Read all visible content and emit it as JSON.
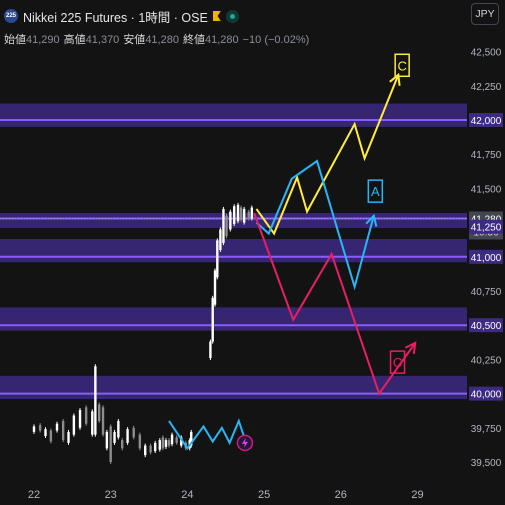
{
  "header": {
    "logo_text": "225",
    "symbol_title": "Nikkei 225 Futures · 1時間 · OSE",
    "flag_icon": "bookmark-flag-icon",
    "status_icon": "market-open-dot-icon"
  },
  "ohlc": {
    "open_label": "始値",
    "open_value": "41,290",
    "high_label": "高値",
    "high_value": "41,370",
    "low_label": "安値",
    "low_value": "41,280",
    "close_label": "終値",
    "close_value": "41,280",
    "change": "−10 (−0.02%)"
  },
  "currency_button": "JPY",
  "colors": {
    "background": "#131313",
    "zone_fill": "#3d2a82",
    "zone_line": "#8a5cff",
    "path_c_upper": "#ffeb3b",
    "path_a": "#29b6f6",
    "path_c_lower": "#e91e63",
    "candle_up": "#ffffff",
    "candle_down": "#8c8c8c",
    "last_price_label": "#434651"
  },
  "chart_data": {
    "type": "line",
    "title": "Nikkei 225 Futures · 1時間 · OSE",
    "x_ticks": [
      "22",
      "23",
      "24",
      "25",
      "26",
      "29"
    ],
    "y_ticks": [
      "42,500",
      "42,250",
      "42,000",
      "41,750",
      "41,500",
      "41,280",
      "41,250",
      "41,000",
      "40,750",
      "40,500",
      "40,250",
      "40,000",
      "39,750",
      "39,500"
    ],
    "ylim": [
      39400,
      42600
    ],
    "last_price": "41,280",
    "countdown": "10:36",
    "zones": [
      {
        "level": "42,000",
        "low": 41950,
        "high": 42120,
        "line": 42000
      },
      {
        "level": "41,280",
        "low": 41210,
        "high": 41320,
        "line": 41280
      },
      {
        "level": "41,250",
        "low": 40960,
        "high": 41130,
        "line": 41000
      },
      {
        "level": "40,500",
        "low": 40460,
        "high": 40630,
        "line": 40500
      },
      {
        "level": "40,000",
        "low": 39960,
        "high": 40130,
        "line": 40000
      }
    ],
    "candles": [
      [
        0.0,
        39760,
        39720
      ],
      [
        0.08,
        39770,
        39730
      ],
      [
        0.15,
        39740,
        39690
      ],
      [
        0.22,
        39730,
        39650
      ],
      [
        0.3,
        39780,
        39730
      ],
      [
        0.38,
        39800,
        39660
      ],
      [
        0.45,
        39720,
        39640
      ],
      [
        0.52,
        39840,
        39700
      ],
      [
        0.6,
        39880,
        39750
      ],
      [
        0.68,
        39900,
        39780
      ],
      [
        0.76,
        39870,
        39700
      ],
      [
        0.8,
        40200,
        39700
      ],
      [
        0.85,
        39920,
        39800
      ],
      [
        0.9,
        39900,
        39700
      ],
      [
        0.95,
        39720,
        39600
      ],
      [
        1.0,
        39760,
        39500
      ],
      [
        1.05,
        39720,
        39640
      ],
      [
        1.1,
        39800,
        39680
      ],
      [
        1.15,
        39660,
        39600
      ],
      [
        1.22,
        39740,
        39640
      ],
      [
        1.3,
        39750,
        39680
      ],
      [
        1.38,
        39700,
        39600
      ],
      [
        1.45,
        39620,
        39550
      ],
      [
        1.52,
        39620,
        39570
      ],
      [
        1.58,
        39640,
        39580
      ],
      [
        1.64,
        39660,
        39590
      ],
      [
        1.68,
        39680,
        39600
      ],
      [
        1.72,
        39660,
        39610
      ],
      [
        1.76,
        39660,
        39620
      ],
      [
        1.8,
        39700,
        39630
      ],
      [
        1.86,
        39680,
        39640
      ],
      [
        1.92,
        39680,
        39620
      ],
      [
        1.98,
        39640,
        39600
      ],
      [
        2.03,
        39660,
        39600
      ],
      [
        2.05,
        39720,
        39620
      ],
      [
        2.3,
        40380,
        40260
      ],
      [
        2.33,
        40700,
        40380
      ],
      [
        2.36,
        40900,
        40650
      ],
      [
        2.39,
        41120,
        40850
      ],
      [
        2.43,
        41200,
        41050
      ],
      [
        2.47,
        41350,
        41100
      ],
      [
        2.51,
        41300,
        41150
      ],
      [
        2.56,
        41330,
        41200
      ],
      [
        2.61,
        41370,
        41240
      ],
      [
        2.66,
        41380,
        41260
      ],
      [
        2.7,
        41360,
        41270
      ],
      [
        2.74,
        41350,
        41250
      ],
      [
        2.8,
        41330,
        41280
      ],
      [
        2.84,
        41360,
        41280
      ]
    ],
    "candle_colors": [
      "up",
      "down",
      "up",
      "down",
      "up",
      "down",
      "up",
      "up",
      "up",
      "down",
      "up",
      "up",
      "down",
      "down",
      "up",
      "down",
      "up",
      "up",
      "down",
      "up",
      "down",
      "down",
      "up",
      "down",
      "up",
      "up",
      "down",
      "up",
      "down",
      "up",
      "down",
      "up",
      "down",
      "up",
      "up",
      "up",
      "up",
      "up",
      "up",
      "up",
      "up",
      "down",
      "up",
      "up",
      "up",
      "down",
      "up",
      "down",
      "up"
    ],
    "forecast_paths": [
      {
        "label": "C",
        "color_key": "path_c_upper",
        "points": [
          [
            2.9,
            41350
          ],
          [
            3.13,
            41170
          ],
          [
            3.43,
            41580
          ],
          [
            3.56,
            41330
          ],
          [
            4.18,
            41970
          ],
          [
            4.31,
            41720
          ],
          [
            4.75,
            42330
          ]
        ]
      },
      {
        "label": "A",
        "color_key": "path_a",
        "points": [
          [
            2.9,
            41250
          ],
          [
            3.06,
            41170
          ],
          [
            3.36,
            41570
          ],
          [
            3.69,
            41700
          ],
          [
            4.18,
            40780
          ],
          [
            4.43,
            41300
          ]
        ]
      },
      {
        "label": "C",
        "color_key": "path_c_lower",
        "points": [
          [
            2.87,
            41320
          ],
          [
            3.38,
            40540
          ],
          [
            3.88,
            41020
          ],
          [
            4.5,
            40000
          ],
          [
            4.97,
            40370
          ]
        ]
      },
      {
        "label": "",
        "color_key": "path_a",
        "points": [
          [
            1.76,
            39800
          ],
          [
            2.0,
            39600
          ],
          [
            2.21,
            39760
          ],
          [
            2.33,
            39650
          ],
          [
            2.45,
            39750
          ],
          [
            2.55,
            39640
          ],
          [
            2.67,
            39800
          ],
          [
            2.79,
            39600
          ]
        ]
      }
    ],
    "wave_labels": [
      {
        "text": "C",
        "color_key": "path_c_upper",
        "x": 4.8,
        "y": 42400
      },
      {
        "text": "A",
        "color_key": "path_a",
        "x": 4.45,
        "y": 41480
      },
      {
        "text": "C",
        "color_key": "path_c_lower",
        "x": 4.74,
        "y": 40230
      }
    ]
  }
}
